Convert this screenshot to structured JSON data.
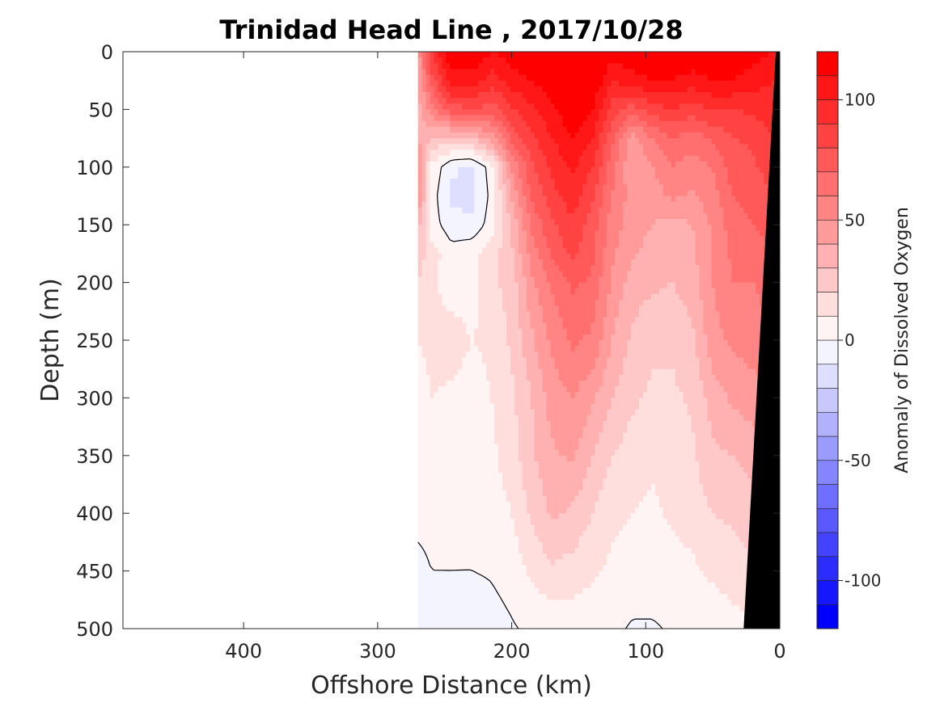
{
  "chart_data": {
    "type": "heatmap",
    "title": "Trinidad Head Line , 2017/10/28",
    "xlabel": "Offshore Distance (km)",
    "ylabel": "Depth (m)",
    "colorbar_label": "Anomaly of Dissolved Oxygen",
    "xlim": [
      490,
      0
    ],
    "ylim": [
      0,
      500
    ],
    "x_ticks": [
      400,
      300,
      200,
      100,
      0
    ],
    "y_ticks": [
      0,
      50,
      100,
      150,
      200,
      250,
      300,
      350,
      400,
      450,
      500
    ],
    "colorbar_range": [
      -120,
      120
    ],
    "colorbar_ticks": [
      100,
      50,
      0,
      -50,
      -100
    ],
    "colorbar_step": 10,
    "data_x_extent": [
      0,
      270
    ],
    "contour_levels": [
      0
    ],
    "colormap": {
      "negative": "#0000ff",
      "zero": "#ffffff",
      "positive": "#ff0000"
    },
    "seafloor_color": "#000000",
    "distance_grid_km": [
      270,
      260,
      245,
      230,
      215,
      200,
      185,
      170,
      155,
      140,
      125,
      110,
      95,
      80,
      65,
      50,
      35,
      20,
      5
    ],
    "depth_grid_m": [
      0,
      25,
      50,
      75,
      100,
      125,
      150,
      175,
      200,
      250,
      300,
      350,
      400,
      450,
      500
    ],
    "values": [
      [
        45,
        90,
        120,
        120,
        110,
        115,
        120,
        120,
        120,
        120,
        115,
        120,
        120,
        120,
        120,
        120,
        120,
        115,
        110
      ],
      [
        40,
        75,
        105,
        105,
        95,
        105,
        110,
        115,
        120,
        120,
        100,
        105,
        110,
        110,
        105,
        110,
        110,
        105,
        100
      ],
      [
        35,
        55,
        75,
        80,
        75,
        88,
        98,
        108,
        118,
        110,
        85,
        75,
        85,
        90,
        85,
        90,
        90,
        92,
        95
      ],
      [
        40,
        30,
        25,
        30,
        45,
        72,
        88,
        100,
        110,
        100,
        72,
        45,
        60,
        70,
        65,
        72,
        80,
        82,
        90
      ],
      [
        50,
        8,
        -8,
        -12,
        5,
        52,
        78,
        92,
        102,
        90,
        65,
        40,
        50,
        60,
        55,
        60,
        75,
        78,
        85
      ],
      [
        55,
        5,
        -12,
        -14,
        3,
        40,
        72,
        86,
        96,
        82,
        60,
        45,
        45,
        52,
        48,
        55,
        70,
        75,
        80
      ],
      [
        35,
        5,
        -6,
        -8,
        5,
        32,
        62,
        78,
        88,
        75,
        55,
        45,
        40,
        35,
        40,
        52,
        65,
        70,
        75
      ],
      [
        25,
        15,
        4,
        8,
        15,
        28,
        55,
        72,
        82,
        72,
        52,
        42,
        35,
        30,
        38,
        52,
        62,
        65,
        70
      ],
      [
        20,
        12,
        5,
        5,
        18,
        24,
        48,
        62,
        72,
        68,
        48,
        35,
        32,
        30,
        35,
        50,
        60,
        60,
        65
      ],
      [
        10,
        12,
        15,
        10,
        12,
        22,
        38,
        52,
        62,
        58,
        40,
        28,
        22,
        22,
        28,
        46,
        52,
        55,
        60
      ],
      [
        6,
        10,
        8,
        5,
        10,
        18,
        30,
        45,
        50,
        42,
        30,
        22,
        18,
        18,
        22,
        35,
        42,
        45,
        50
      ],
      [
        5,
        5,
        5,
        5,
        8,
        15,
        28,
        38,
        42,
        30,
        20,
        15,
        12,
        15,
        18,
        28,
        30,
        35,
        40
      ],
      [
        2,
        2,
        2,
        3,
        5,
        10,
        22,
        32,
        28,
        20,
        12,
        10,
        8,
        12,
        15,
        20,
        22,
        25,
        30
      ],
      [
        -2,
        0,
        0,
        0,
        1,
        4,
        12,
        18,
        16,
        12,
        8,
        5,
        5,
        5,
        8,
        12,
        15,
        18,
        20
      ],
      [
        -6,
        -4,
        -3,
        -8,
        -4,
        -1,
        2,
        3,
        3,
        3,
        2,
        -1,
        -1,
        1,
        2,
        3,
        6,
        8,
        10
      ]
    ]
  }
}
